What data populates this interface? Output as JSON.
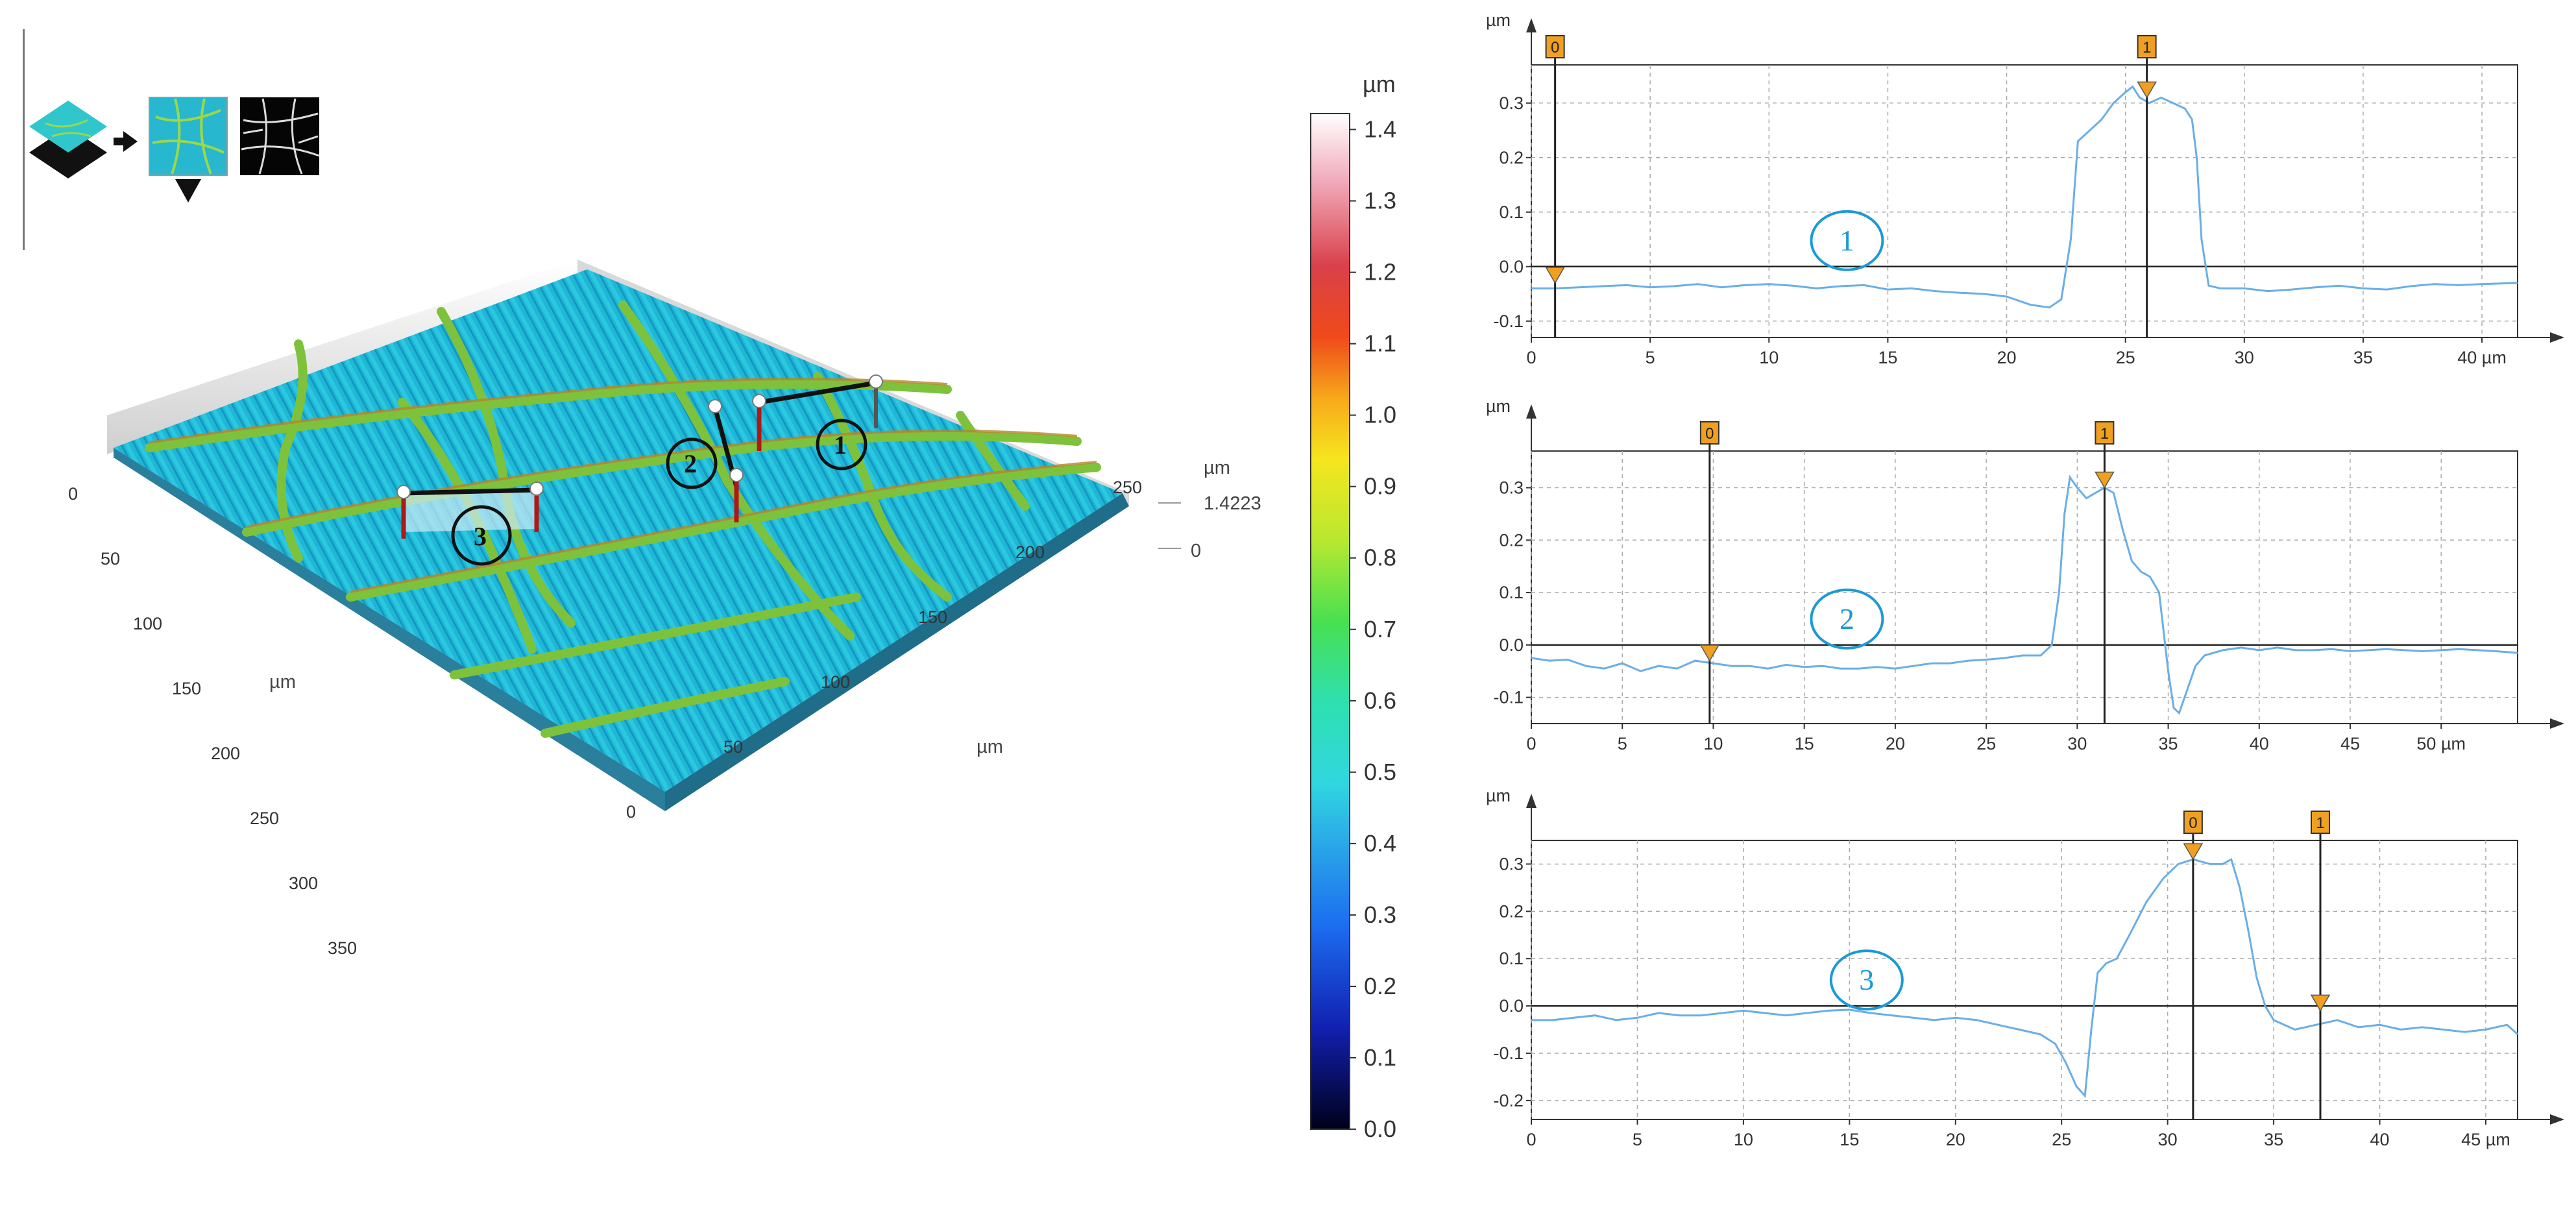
{
  "toolbar": {
    "icons": [
      "surface-layers-icon",
      "arrow-right-icon",
      "height-map-icon",
      "dropdown-triangle-icon",
      "binary-mask-icon"
    ]
  },
  "surface_view": {
    "x_axis": {
      "unit": "µm",
      "ticks": [
        "0",
        "50",
        "100",
        "150",
        "200",
        "250",
        "300",
        "350"
      ]
    },
    "y_axis": {
      "unit": "µm",
      "ticks": [
        "0",
        "50",
        "100",
        "150",
        "200",
        "250"
      ]
    },
    "z_axis": {
      "unit": "µm",
      "ticks": [
        "0",
        "1.4223"
      ]
    },
    "profile_markers": [
      "1",
      "2",
      "3"
    ]
  },
  "colorbar": {
    "unit": "µm",
    "ticks": [
      "0.0",
      "0.1",
      "0.2",
      "0.3",
      "0.4",
      "0.5",
      "0.6",
      "0.7",
      "0.8",
      "0.9",
      "1.0",
      "1.1",
      "1.2",
      "1.3",
      "1.4"
    ],
    "min": 0.0,
    "max": 1.4223
  },
  "colors": {
    "profile_line": "#6aaee8",
    "label_circle": "#1a9ad6",
    "cursor_box": "#f0a020",
    "cursor_line": "#222222"
  },
  "chart_data": [
    {
      "type": "line",
      "label": "1",
      "xunit": "µm",
      "yunit": "µm",
      "xticks": [
        "0",
        "5",
        "10",
        "15",
        "20",
        "25",
        "30",
        "35",
        "40 µm"
      ],
      "yticks": [
        "-0.1",
        "0.0",
        "0.1",
        "0.2",
        "0.3"
      ],
      "xlim": [
        0,
        41.5
      ],
      "ylim": [
        -0.13,
        0.37
      ],
      "grid": true,
      "cursors": [
        {
          "label": "0",
          "x": 1.0,
          "y": -0.03
        },
        {
          "label": "1",
          "x": 25.9,
          "y": 0.31
        }
      ],
      "series": [
        {
          "x": [
            0,
            1,
            2,
            3,
            4,
            5,
            6,
            7,
            8,
            9,
            10,
            11,
            12,
            13,
            14,
            15,
            16,
            17,
            18,
            19,
            20,
            21,
            21.8,
            22.3,
            22.7,
            23.0,
            23.5,
            24.0,
            24.5,
            25.0,
            25.3,
            25.6,
            26.0,
            26.5,
            27.0,
            27.5,
            27.8,
            28.0,
            28.2,
            28.5,
            29,
            30,
            31,
            32,
            33,
            34,
            35,
            36,
            37,
            38,
            39,
            40,
            41.5
          ],
          "y": [
            -0.04,
            -0.04,
            -0.038,
            -0.036,
            -0.034,
            -0.038,
            -0.036,
            -0.032,
            -0.038,
            -0.034,
            -0.032,
            -0.035,
            -0.04,
            -0.036,
            -0.034,
            -0.042,
            -0.04,
            -0.045,
            -0.048,
            -0.05,
            -0.055,
            -0.07,
            -0.075,
            -0.06,
            0.05,
            0.23,
            0.25,
            0.27,
            0.3,
            0.32,
            0.33,
            0.31,
            0.3,
            0.31,
            0.3,
            0.29,
            0.27,
            0.2,
            0.05,
            -0.035,
            -0.04,
            -0.04,
            -0.045,
            -0.042,
            -0.038,
            -0.035,
            -0.04,
            -0.042,
            -0.036,
            -0.032,
            -0.034,
            -0.032,
            -0.03
          ]
        }
      ]
    },
    {
      "type": "line",
      "label": "2",
      "xunit": "µm",
      "yunit": "µm",
      "xticks": [
        "0",
        "5",
        "10",
        "15",
        "20",
        "25",
        "30",
        "35",
        "40",
        "45",
        "50 µm"
      ],
      "yticks": [
        "-0.1",
        "0.0",
        "0.1",
        "0.2",
        "0.3"
      ],
      "xlim": [
        0,
        54.2
      ],
      "ylim": [
        -0.15,
        0.37
      ],
      "grid": true,
      "cursors": [
        {
          "label": "0",
          "x": 9.8,
          "y": -0.03
        },
        {
          "label": "1",
          "x": 31.5,
          "y": 0.3
        }
      ],
      "series": [
        {
          "x": [
            0,
            1,
            2,
            3,
            4,
            5,
            6,
            7,
            8,
            9,
            10,
            11,
            12,
            13,
            14,
            15,
            16,
            17,
            18,
            19,
            20,
            21,
            22,
            23,
            24,
            25,
            26,
            27,
            28,
            28.6,
            29.0,
            29.3,
            29.6,
            30.0,
            30.5,
            31.0,
            31.5,
            32.0,
            32.5,
            33.0,
            33.5,
            34.0,
            34.5,
            35.0,
            35.3,
            35.6,
            36.0,
            36.5,
            37,
            38,
            39,
            40,
            41,
            42,
            43,
            44,
            45,
            46,
            47,
            48,
            49,
            50,
            51,
            52,
            53,
            54.2
          ],
          "y": [
            -0.025,
            -0.03,
            -0.028,
            -0.04,
            -0.045,
            -0.035,
            -0.05,
            -0.04,
            -0.045,
            -0.03,
            -0.035,
            -0.04,
            -0.04,
            -0.045,
            -0.038,
            -0.042,
            -0.04,
            -0.045,
            -0.045,
            -0.042,
            -0.045,
            -0.04,
            -0.035,
            -0.035,
            -0.03,
            -0.028,
            -0.025,
            -0.02,
            -0.02,
            0.0,
            0.1,
            0.25,
            0.32,
            0.3,
            0.28,
            0.29,
            0.3,
            0.29,
            0.22,
            0.16,
            0.14,
            0.13,
            0.1,
            -0.05,
            -0.12,
            -0.13,
            -0.09,
            -0.04,
            -0.02,
            -0.01,
            -0.005,
            -0.01,
            -0.005,
            -0.01,
            -0.01,
            -0.008,
            -0.012,
            -0.01,
            -0.008,
            -0.01,
            -0.012,
            -0.01,
            -0.008,
            -0.01,
            -0.012,
            -0.015
          ]
        }
      ]
    },
    {
      "type": "line",
      "label": "3",
      "xunit": "µm",
      "yunit": "µm",
      "xticks": [
        "0",
        "5",
        "10",
        "15",
        "20",
        "25",
        "30",
        "35",
        "40",
        "45 µm"
      ],
      "yticks": [
        "-0.2",
        "-0.1",
        "0.0",
        "0.1",
        "0.2",
        "0.3"
      ],
      "xlim": [
        0,
        46.5
      ],
      "ylim": [
        -0.24,
        0.35
      ],
      "grid": true,
      "cursors": [
        {
          "label": "0",
          "x": 31.2,
          "y": 0.31
        },
        {
          "label": "1",
          "x": 37.2,
          "y": -0.01
        }
      ],
      "series": [
        {
          "x": [
            0,
            1,
            2,
            3,
            4,
            5,
            6,
            7,
            8,
            9,
            10,
            11,
            12,
            13,
            14,
            15,
            16,
            17,
            18,
            19,
            20,
            21,
            22,
            23,
            24,
            24.7,
            25.2,
            25.7,
            26.1,
            26.4,
            26.7,
            27.1,
            27.6,
            28.2,
            29.0,
            29.8,
            30.5,
            31.2,
            32.0,
            32.6,
            33.0,
            33.4,
            33.8,
            34.2,
            34.6,
            35.0,
            35.5,
            36,
            37,
            38,
            39,
            40,
            41,
            42,
            43,
            44,
            45,
            46,
            46.5
          ],
          "y": [
            -0.03,
            -0.03,
            -0.025,
            -0.02,
            -0.03,
            -0.025,
            -0.015,
            -0.02,
            -0.02,
            -0.015,
            -0.01,
            -0.015,
            -0.02,
            -0.015,
            -0.01,
            -0.008,
            -0.015,
            -0.02,
            -0.025,
            -0.03,
            -0.025,
            -0.03,
            -0.04,
            -0.05,
            -0.06,
            -0.08,
            -0.12,
            -0.17,
            -0.19,
            -0.05,
            0.07,
            0.09,
            0.1,
            0.15,
            0.22,
            0.27,
            0.3,
            0.31,
            0.3,
            0.3,
            0.31,
            0.25,
            0.16,
            0.06,
            0.0,
            -0.03,
            -0.04,
            -0.05,
            -0.04,
            -0.03,
            -0.045,
            -0.04,
            -0.05,
            -0.045,
            -0.05,
            -0.055,
            -0.05,
            -0.04,
            -0.06
          ]
        }
      ]
    }
  ]
}
